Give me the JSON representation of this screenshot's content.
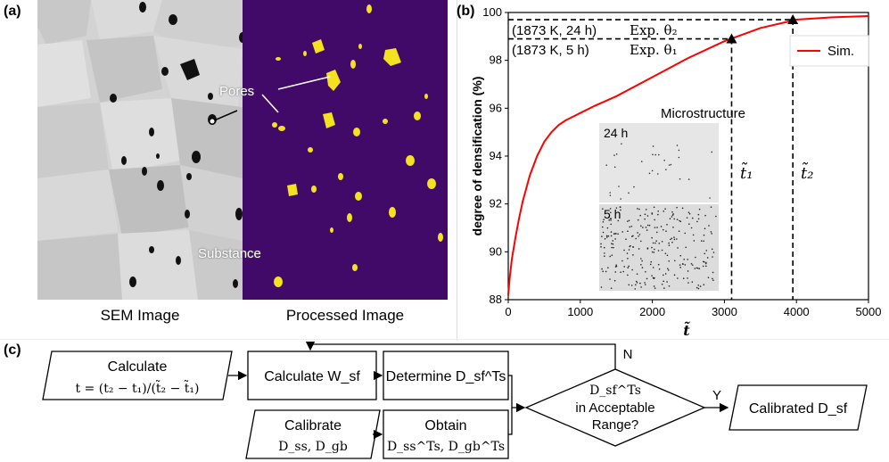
{
  "panel_a": {
    "label": "(a)",
    "left_caption": "SEM Image",
    "right_caption": "Processed Image",
    "pores_label": "Pores",
    "substance_label": "Substance",
    "colors": {
      "processed_bg": "#420a68",
      "pore_fill": "#f5e21f",
      "sem_bg": "#d4d4d4",
      "sem_pore": "#111111"
    }
  },
  "panel_b": {
    "label": "(b)",
    "legend": "Sim.",
    "inset_title": "Microstructure",
    "inset_top_label": "24 h",
    "inset_bottom_label": "5 h",
    "annotation_24h": "(1873 K, 24 h)",
    "annotation_5h": "(1873 K, 5 h)",
    "exp_theta2": "Exp. θ₂",
    "exp_theta1": "Exp. θ₁",
    "t1_label": "t̃₁",
    "t2_label": "t̃₂",
    "colors": {
      "sim_line": "#ff0000"
    }
  },
  "chart_data": {
    "type": "line",
    "title": "",
    "xlabel": "t̃",
    "ylabel": "degree of densification (%)",
    "xlim": [
      0,
      5000
    ],
    "ylim": [
      88,
      100
    ],
    "xticks": [
      "0",
      "1000",
      "2000",
      "3000",
      "4000",
      "5000"
    ],
    "yticks": [
      "88",
      "90",
      "92",
      "94",
      "96",
      "98",
      "100"
    ],
    "series": [
      {
        "name": "Sim.",
        "x": [
          0,
          20,
          50,
          100,
          150,
          200,
          300,
          400,
          500,
          600,
          700,
          800,
          1000,
          1200,
          1500,
          2000,
          2500,
          3000,
          3500,
          4000,
          4500,
          5000
        ],
        "y": [
          88.2,
          88.9,
          89.7,
          90.6,
          91.4,
          92.1,
          93.2,
          94.0,
          94.6,
          95.0,
          95.3,
          95.5,
          95.8,
          96.1,
          96.5,
          97.3,
          98.1,
          98.8,
          99.35,
          99.7,
          99.8,
          99.85
        ]
      }
    ],
    "experiment_points": [
      {
        "name": "Exp. θ1",
        "x": 3100,
        "y": 98.9
      },
      {
        "name": "Exp. θ2",
        "x": 3950,
        "y": 99.7
      }
    ]
  },
  "panel_c": {
    "label": "(c)",
    "calc_t_title": "Calculate",
    "calc_t_formula": "t = (t₂ − t₁)/(t̃₂ − t̃₁)",
    "calc_w": "Calculate W_sf",
    "determine": "Determine D_sf^Ts",
    "calibrate_title": "Calibrate",
    "calibrate_formula": "D_ss, D_gb",
    "obtain_title": "Obtain",
    "obtain_formula": "D_ss^Ts, D_gb^Ts",
    "decision_line1": "D_sf^Ts",
    "decision_line2": "in Acceptable",
    "decision_line3": "Range?",
    "branch_n": "N",
    "branch_y": "Y",
    "calibrated": "Calibrated D_sf"
  }
}
